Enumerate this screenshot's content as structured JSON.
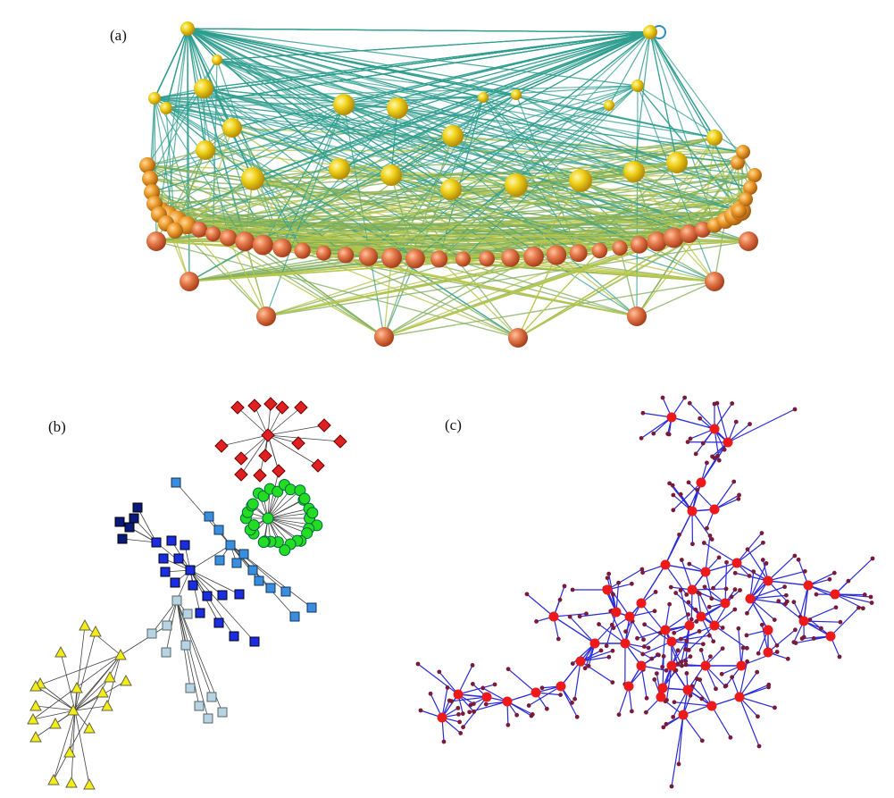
{
  "figure": {
    "panels": [
      {
        "label": "(a)"
      },
      {
        "label": "(b)"
      },
      {
        "label": "(c)"
      }
    ],
    "colors": {
      "a_nodes_top": "#f1d21a",
      "a_nodes_bottom": "#e57a4c",
      "a_edges_upper": "#2f9e8f",
      "a_edges_lower": "#b8c64a",
      "b_red": "#e02020",
      "b_green": "#22dd22",
      "b_navy": "#0a1a7a",
      "b_blue": "#1a2ee0",
      "b_sky": "#3a8ee0",
      "b_pale": "#b8d4e4",
      "b_yellow": "#f2ec18",
      "c_edge": "#2a2ad8",
      "c_hub": "#ee1a1a",
      "c_leaf": "#7a1a3a"
    }
  }
}
